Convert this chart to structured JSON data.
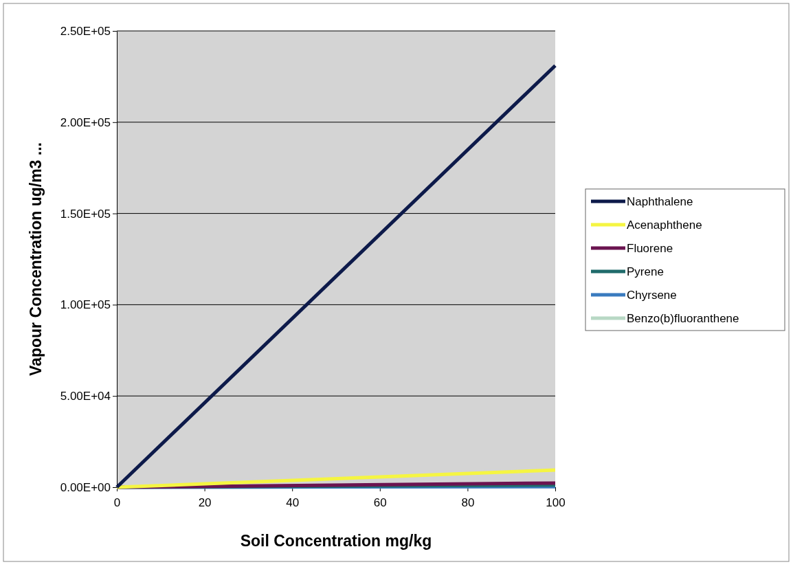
{
  "chart_data": {
    "type": "line",
    "xlabel": "Soil Concentration mg/kg",
    "ylabel": "Vapour Concentration ug/m3 ...",
    "x": [
      0,
      100
    ],
    "series": [
      {
        "name": "Naphthalene",
        "color": "#0d1a4a",
        "values": [
          0,
          231000
        ]
      },
      {
        "name": "Acenaphthene",
        "color": "#f5f542",
        "values": [
          0,
          9400
        ]
      },
      {
        "name": "Fluorene",
        "color": "#6b1450",
        "values": [
          0,
          2300
        ]
      },
      {
        "name": "Pyrene",
        "color": "#1f6b6b",
        "values": [
          0,
          1200
        ]
      },
      {
        "name": "Chyrsene",
        "color": "#3a7bbf",
        "values": [
          0,
          300
        ]
      },
      {
        "name": "Benzo(b)fluoranthene",
        "color": "#b8d8c4",
        "values": [
          null,
          null
        ]
      }
    ],
    "xlim": [
      0,
      100
    ],
    "xticks": [
      0,
      20,
      40,
      60,
      80,
      100
    ],
    "ylim": [
      0,
      250000
    ],
    "yticks": [
      {
        "value": 0,
        "label": "0.00E+00"
      },
      {
        "value": 50000,
        "label": "5.00E+04"
      },
      {
        "value": 100000,
        "label": "1.00E+05"
      },
      {
        "value": 150000,
        "label": "1.50E+05"
      },
      {
        "value": 200000,
        "label": "2.00E+05"
      },
      {
        "value": 250000,
        "label": "2.50E+05"
      }
    ],
    "grid": "y",
    "legend": "right",
    "marker": "none",
    "line_style": "solid"
  }
}
